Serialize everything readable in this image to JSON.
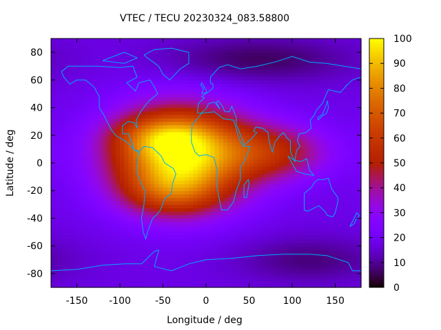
{
  "chart_data": {
    "type": "heatmap",
    "title": "VTEC / TECU 20230324_083.58800",
    "xlabel": "Longitude / deg",
    "ylabel": "Latitude / deg",
    "xlim": [
      -180,
      180
    ],
    "ylim": [
      -90,
      90
    ],
    "xticks": [
      -150,
      -100,
      -50,
      0,
      50,
      100,
      150
    ],
    "yticks": [
      -80,
      -60,
      -40,
      -20,
      0,
      20,
      40,
      60,
      80
    ],
    "colorbar": {
      "min": 0,
      "max": 100,
      "ticks": [
        0,
        10,
        20,
        30,
        40,
        50,
        60,
        70,
        80,
        90,
        100
      ],
      "palette": "black-purple-red-orange-yellow"
    },
    "field": {
      "background_tecu": 18,
      "peaks": [
        {
          "name": "main-anomaly",
          "lon": -30,
          "lat": 5,
          "amplitude_tecu": 80,
          "sigma_lon": 55,
          "sigma_lat": 24
        },
        {
          "name": "north-crest",
          "lon": -50,
          "lat": 20,
          "amplitude_tecu": 20,
          "sigma_lon": 40,
          "sigma_lat": 10
        },
        {
          "name": "south-crest",
          "lon": -40,
          "lat": -22,
          "amplitude_tecu": 20,
          "sigma_lon": 40,
          "sigma_lat": 12
        },
        {
          "name": "east-tail",
          "lon": 80,
          "lat": 8,
          "amplitude_tecu": 30,
          "sigma_lon": 45,
          "sigma_lat": 14
        },
        {
          "name": "polar-north-low",
          "lon": 60,
          "lat": 75,
          "amplitude_tecu": -12,
          "sigma_lon": 80,
          "sigma_lat": 12
        },
        {
          "name": "polar-south-low",
          "lon": 120,
          "lat": -70,
          "amplitude_tecu": -10,
          "sigma_lon": 60,
          "sigma_lat": 12
        }
      ]
    },
    "coastline_color": "#00aaff"
  }
}
